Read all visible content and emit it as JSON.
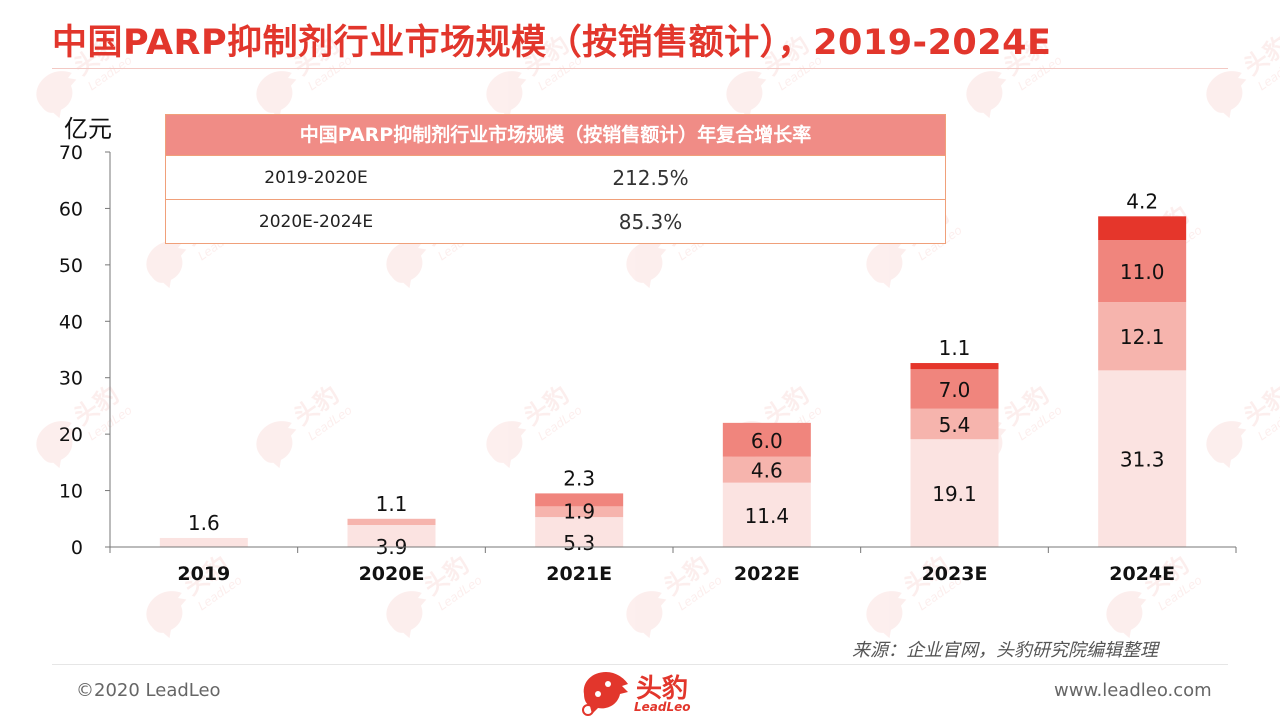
{
  "page": {
    "title": "中国PARP抑制剂行业市场规模（按销售额计），2019-2024E",
    "source": "来源：企业官网，头豹研究院编辑整理",
    "copyright": "©2020 LeadLeo",
    "website": "www.leadleo.com",
    "logo_cn": "头豹",
    "logo_en": "LeadLeo",
    "watermark_cn": "头豹",
    "watermark_en": "LeadLeo"
  },
  "cagr_table": {
    "header": "中国PARP抑制剂行业市场规模（按销售额计）年复合增长率",
    "rows": [
      {
        "period": "2019-2020E",
        "value": "212.5%"
      },
      {
        "period": "2020E-2024E",
        "value": "85.3%"
      }
    ]
  },
  "colors": {
    "title": "#e2362c",
    "segment_1": "#fbe3e1",
    "segment_2": "#f6b4ad",
    "segment_3": "#f0857d",
    "segment_4": "#e5362b",
    "table_header": "#f08c86",
    "table_border": "#f0a07a"
  },
  "chart_data": {
    "type": "bar",
    "stacked": true,
    "ylabel": "亿元",
    "ylim": [
      0,
      70
    ],
    "yticks": [
      0,
      10,
      20,
      30,
      40,
      50,
      60,
      70
    ],
    "categories": [
      "2019",
      "2020E",
      "2021E",
      "2022E",
      "2023E",
      "2024E"
    ],
    "series": [
      {
        "values": [
          1.6,
          3.9,
          5.3,
          11.4,
          19.1,
          31.3
        ]
      },
      {
        "values": [
          null,
          1.1,
          1.9,
          4.6,
          5.4,
          12.1
        ]
      },
      {
        "values": [
          null,
          null,
          2.3,
          6.0,
          7.0,
          11.0
        ]
      },
      {
        "values": [
          null,
          null,
          null,
          null,
          1.1,
          4.2
        ]
      }
    ],
    "labels": [
      [
        "1.6",
        "",
        "",
        ""
      ],
      [
        "3.9",
        "1.1",
        "",
        ""
      ],
      [
        "5.3",
        "1.9",
        "2.3",
        ""
      ],
      [
        "11.4",
        "4.6",
        "6.0",
        ""
      ],
      [
        "19.1",
        "5.4",
        "7.0",
        "1.1"
      ],
      [
        "31.3",
        "12.1",
        "11.0",
        "4.2"
      ]
    ],
    "grid": false,
    "legend": "none"
  }
}
